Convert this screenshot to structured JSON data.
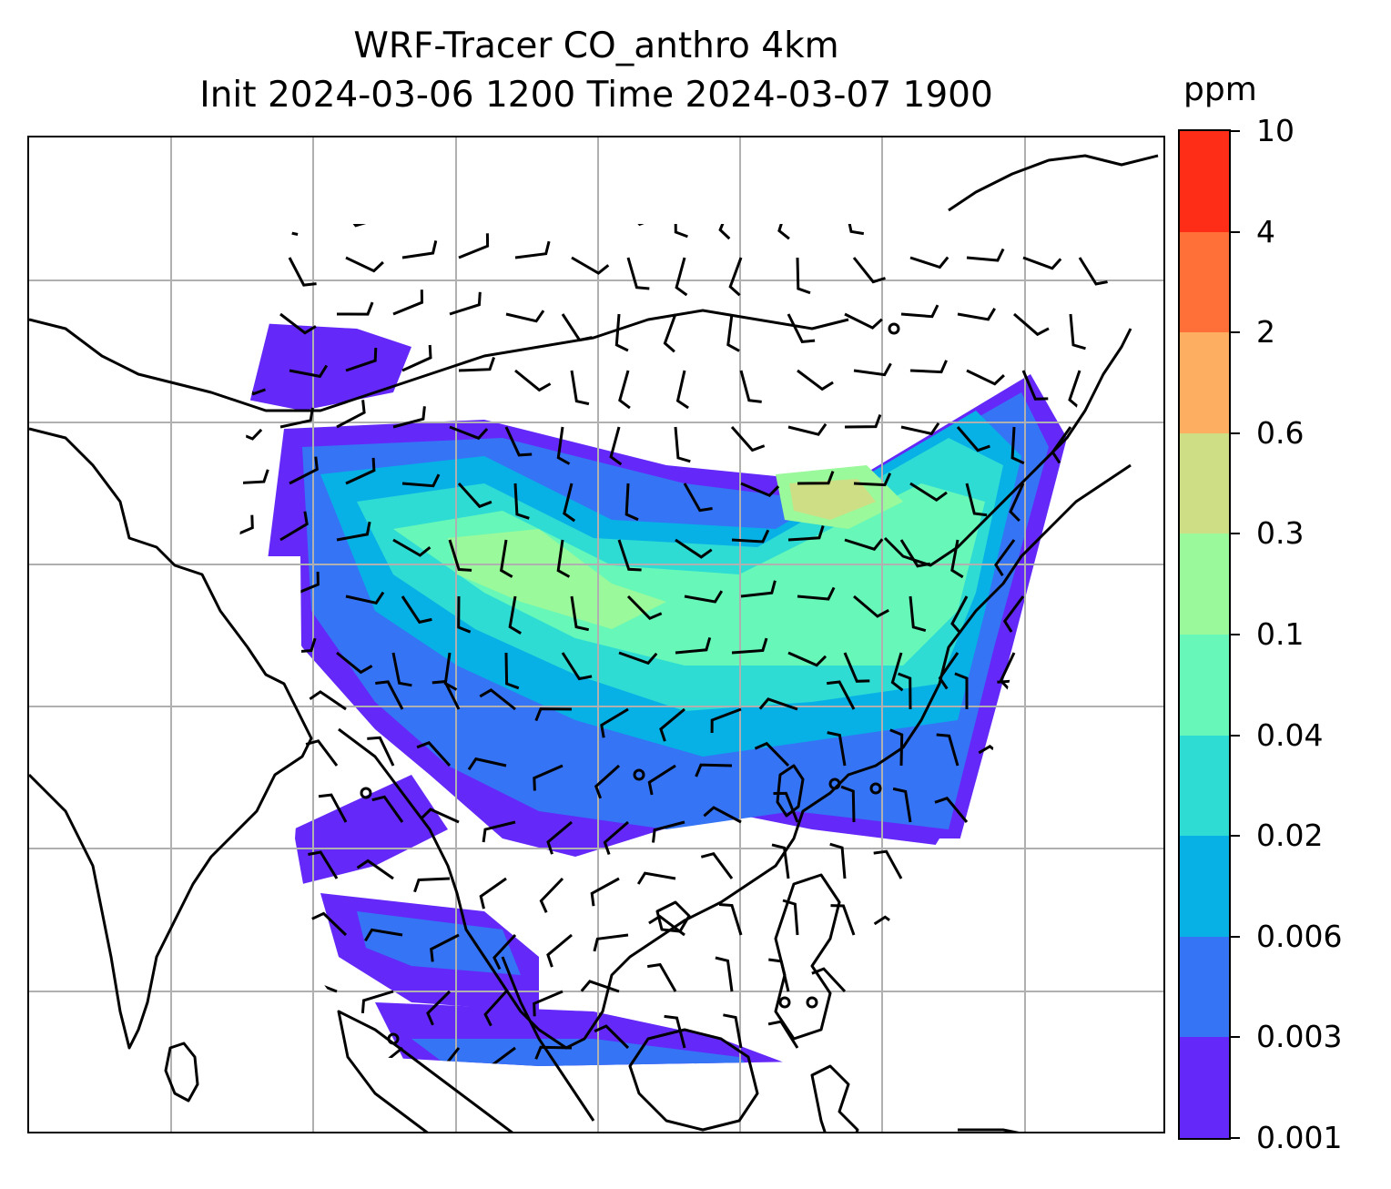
{
  "title": {
    "line1": "WRF-Tracer CO_anthro 4km",
    "line2": "Init 2024-03-06 1200 Time 2024-03-07 1900"
  },
  "colorbar": {
    "unit": "ppm",
    "levels": [
      "0.001",
      "0.003",
      "0.006",
      "0.02",
      "0.04",
      "0.1",
      "0.3",
      "0.6",
      "2",
      "4",
      "10"
    ],
    "colors": [
      "#6429f8",
      "#3574f5",
      "#07b1e6",
      "#2edcd4",
      "#67f8b9",
      "#9af99a",
      "#cede85",
      "#fdae60",
      "#fe7038",
      "#fd2d17"
    ]
  },
  "map": {
    "fields": [
      "CO_anthro tracer concentration (filled contours)",
      "wind barbs"
    ],
    "gridlines": true,
    "coastlines": true,
    "barb_color": "#000000"
  }
}
